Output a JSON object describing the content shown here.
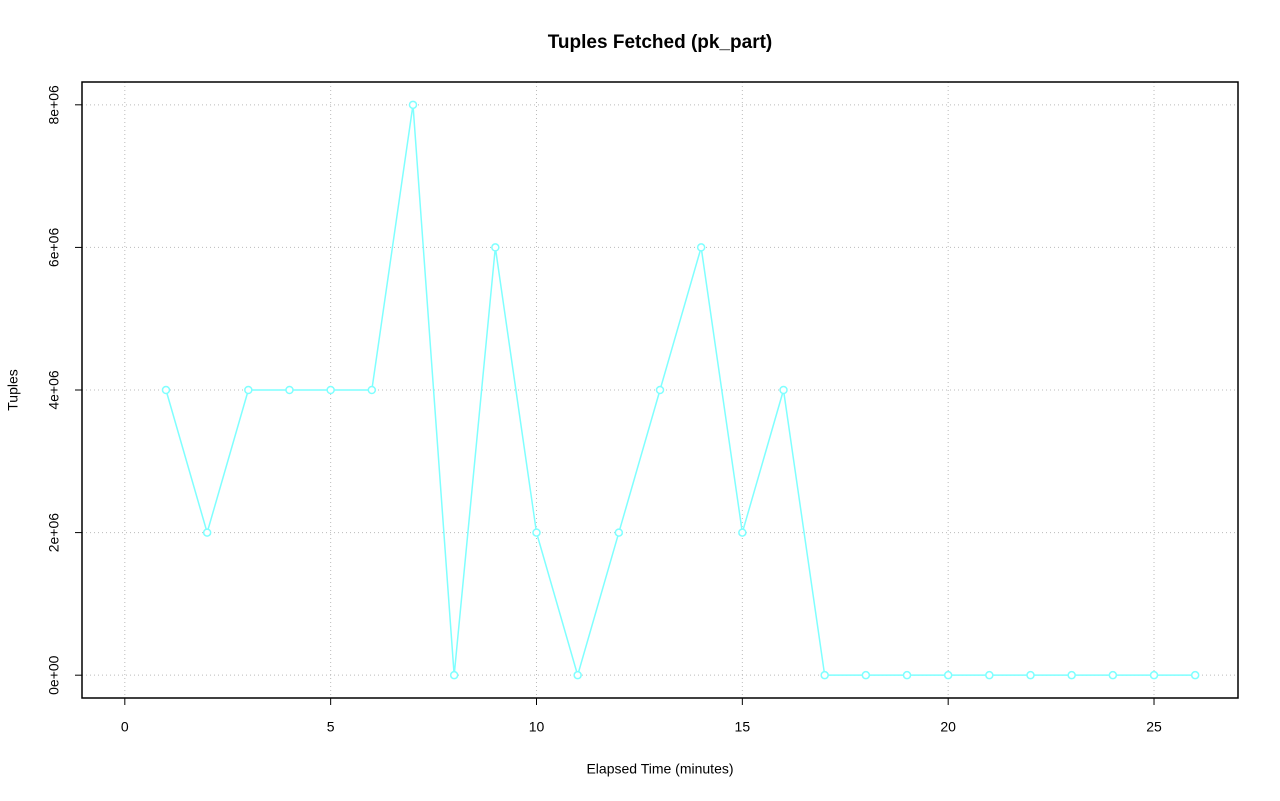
{
  "chart_data": {
    "type": "line",
    "title": "Tuples Fetched (pk_part)",
    "x_label": "Elapsed Time (minutes)",
    "y_label": "Tuples",
    "x": [
      1,
      2,
      3,
      4,
      5,
      6,
      7,
      8,
      9,
      10,
      11,
      12,
      13,
      14,
      15,
      16,
      17,
      18,
      19,
      20,
      21,
      22,
      23,
      24,
      25,
      26
    ],
    "series": [
      {
        "color": "#7fffff",
        "values": [
          4000000,
          2000000,
          4000000,
          4000000,
          4000000,
          4000000,
          8000000,
          0,
          6000000,
          2000000,
          0,
          2000000,
          4000000,
          6000000,
          2000000,
          4000000,
          0,
          0,
          0,
          0,
          0,
          0,
          0,
          0,
          0,
          0
        ]
      }
    ],
    "xlim": [
      -1.04,
      27.04
    ],
    "xticks": [
      0,
      5,
      10,
      15,
      20,
      25
    ],
    "ylim": [
      -320000,
      8320000
    ],
    "yticks": [
      {
        "value": 0,
        "label": "0e+00"
      },
      {
        "value": 2000000,
        "label": "2e+06"
      },
      {
        "value": 4000000,
        "label": "4e+06"
      },
      {
        "value": 6000000,
        "label": "6e+06"
      },
      {
        "value": 8000000,
        "label": "8e+06"
      }
    ],
    "grid": true
  }
}
